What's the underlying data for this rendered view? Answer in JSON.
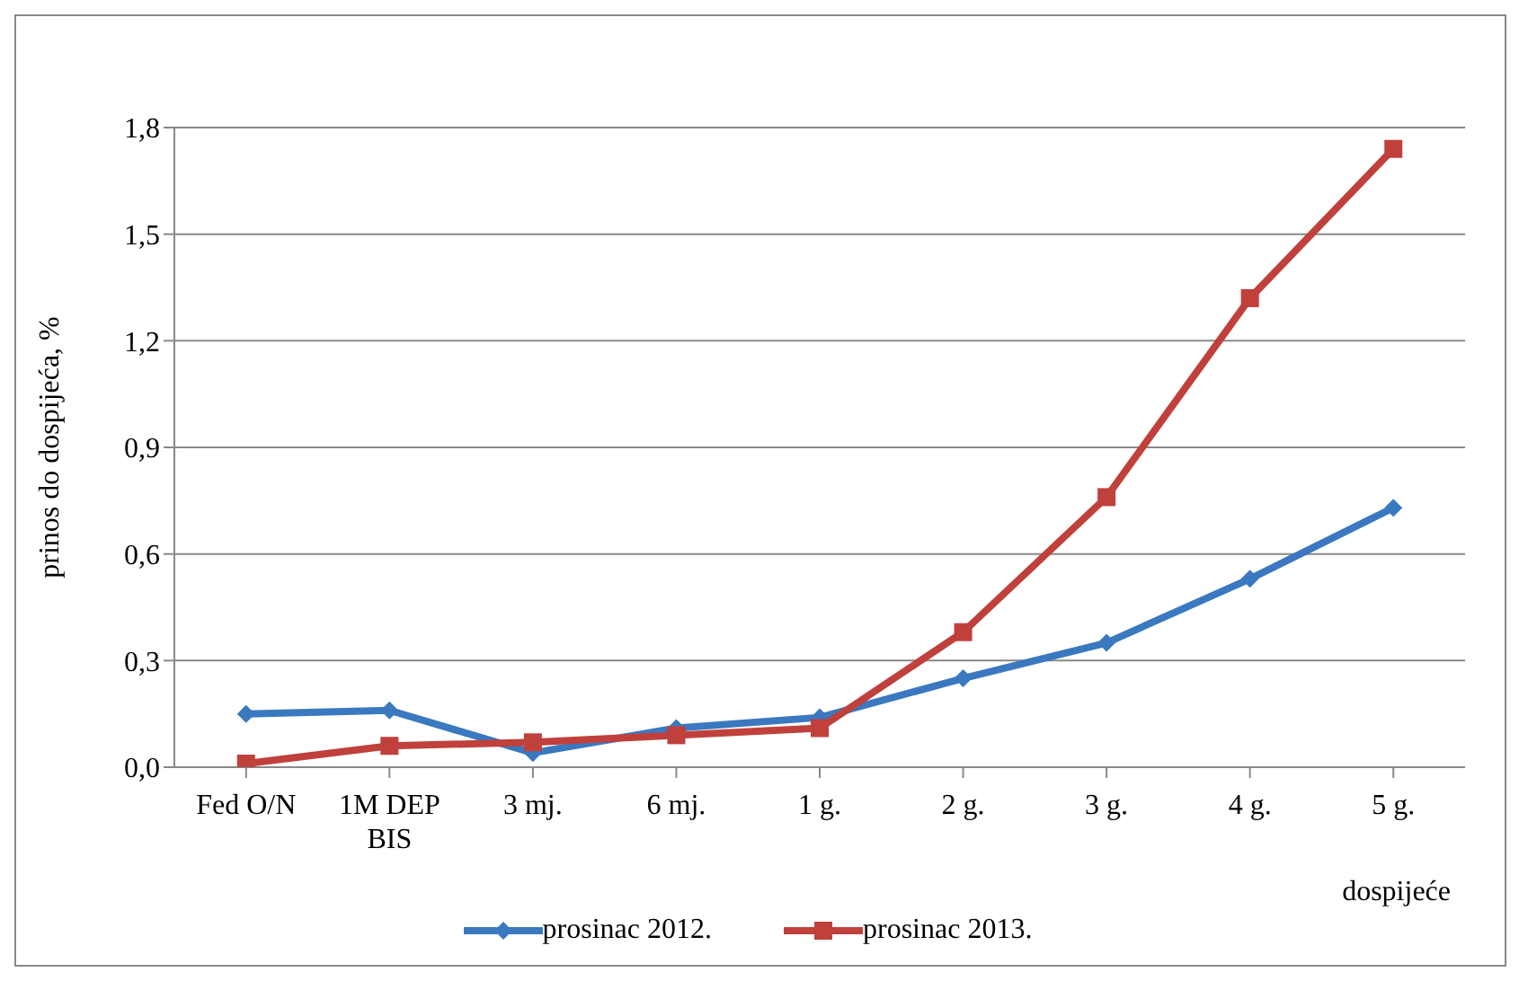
{
  "chart_data": {
    "type": "line",
    "xlabel": "dospijeće",
    "ylabel": "prinos do dospijeća, %",
    "categories": [
      "Fed O/N",
      "1M DEP BIS",
      "3 mj.",
      "6 mj.",
      "1 g.",
      "2 g.",
      "3 g.",
      "4 g.",
      "5 g."
    ],
    "series": [
      {
        "name": "prosinac 2012.",
        "color": "#3a78c0",
        "marker": "diamond",
        "values": [
          0.15,
          0.16,
          0.04,
          0.11,
          0.14,
          0.25,
          0.35,
          0.53,
          0.73
        ]
      },
      {
        "name": "prosinac 2013.",
        "color": "#c0403c",
        "marker": "square",
        "values": [
          0.01,
          0.06,
          0.07,
          0.09,
          0.11,
          0.38,
          0.76,
          1.32,
          1.74
        ]
      }
    ],
    "ylim": [
      0,
      1.8
    ],
    "yticks": [
      {
        "value": 0,
        "label": "0,0"
      },
      {
        "value": 0.3,
        "label": "0,3"
      },
      {
        "value": 0.6,
        "label": "0,6"
      },
      {
        "value": 0.9,
        "label": "0,9"
      },
      {
        "value": 1.2,
        "label": "1,2"
      },
      {
        "value": 1.5,
        "label": "1,5"
      },
      {
        "value": 1.8,
        "label": "1,8"
      }
    ],
    "grid": "y",
    "legend": "bottom",
    "line_style": "solid"
  }
}
